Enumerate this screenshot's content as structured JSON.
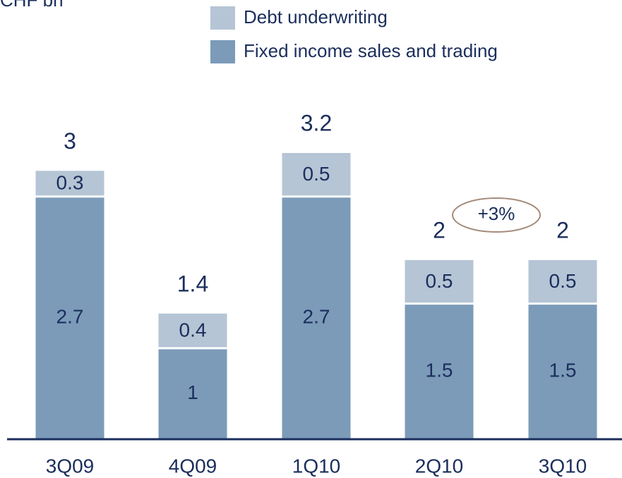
{
  "chart_data": {
    "type": "stacked_bar",
    "subtitle": "CHF bn",
    "categories": [
      "3Q09",
      "4Q09",
      "1Q10",
      "2Q10",
      "3Q10"
    ],
    "series": [
      {
        "name": "Fixed income sales and trading",
        "color": "#7b9bb9",
        "values": [
          2.7,
          1.0,
          2.7,
          1.5,
          1.5
        ]
      },
      {
        "name": "Debt underwriting",
        "color": "#b5c5d5",
        "values": [
          0.3,
          0.4,
          0.5,
          0.5,
          0.5
        ]
      }
    ],
    "totals": [
      3.0,
      1.4,
      3.2,
      2.0,
      2.0
    ],
    "annotation": "+3%"
  }
}
